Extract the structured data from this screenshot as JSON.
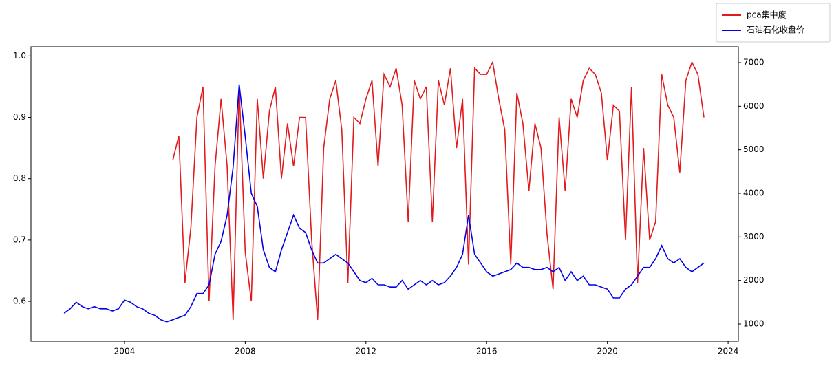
{
  "chart_data": {
    "type": "line",
    "x": [
      2002,
      2002.2,
      2002.4,
      2002.6,
      2002.8,
      2003,
      2003.2,
      2003.4,
      2003.6,
      2003.8,
      2004,
      2004.2,
      2004.4,
      2004.6,
      2004.8,
      2005,
      2005.2,
      2005.4,
      2005.6,
      2005.8,
      2006,
      2006.2,
      2006.4,
      2006.6,
      2006.8,
      2007,
      2007.2,
      2007.4,
      2007.6,
      2007.8,
      2008,
      2008.2,
      2008.4,
      2008.6,
      2008.8,
      2009,
      2009.2,
      2009.4,
      2009.6,
      2009.8,
      2010,
      2010.2,
      2010.4,
      2010.6,
      2010.8,
      2011,
      2011.2,
      2011.4,
      2011.6,
      2011.8,
      2012,
      2012.2,
      2012.4,
      2012.6,
      2012.8,
      2013,
      2013.2,
      2013.4,
      2013.6,
      2013.8,
      2014,
      2014.2,
      2014.4,
      2014.6,
      2014.8,
      2015,
      2015.2,
      2015.4,
      2015.6,
      2015.8,
      2016,
      2016.2,
      2016.4,
      2016.6,
      2016.8,
      2017,
      2017.2,
      2017.4,
      2017.6,
      2017.8,
      2018,
      2018.2,
      2018.4,
      2018.6,
      2018.8,
      2019,
      2019.2,
      2019.4,
      2019.6,
      2019.8,
      2020,
      2020.2,
      2020.4,
      2020.6,
      2020.8,
      2021,
      2021.2,
      2021.4,
      2021.6,
      2021.8,
      2022,
      2022.2,
      2022.4,
      2022.6,
      2022.8,
      2023,
      2023.2
    ],
    "series": [
      {
        "name": "pca集中度",
        "color": "#e31a1c",
        "axis": "y",
        "values": [
          null,
          null,
          null,
          null,
          null,
          null,
          null,
          null,
          null,
          null,
          null,
          null,
          null,
          null,
          null,
          null,
          null,
          null,
          0.83,
          0.87,
          0.63,
          0.72,
          0.9,
          0.95,
          0.6,
          0.82,
          0.93,
          0.82,
          0.57,
          0.95,
          0.68,
          0.6,
          0.93,
          0.8,
          0.91,
          0.95,
          0.8,
          0.89,
          0.82,
          0.9,
          0.9,
          0.7,
          0.57,
          0.85,
          0.93,
          0.96,
          0.88,
          0.63,
          0.9,
          0.89,
          0.93,
          0.96,
          0.82,
          0.97,
          0.95,
          0.98,
          0.92,
          0.73,
          0.96,
          0.93,
          0.95,
          0.73,
          0.96,
          0.92,
          0.98,
          0.85,
          0.93,
          0.66,
          0.98,
          0.97,
          0.97,
          0.99,
          0.93,
          0.88,
          0.66,
          0.94,
          0.89,
          0.78,
          0.89,
          0.85,
          0.71,
          0.62,
          0.9,
          0.78,
          0.93,
          0.9,
          0.96,
          0.98,
          0.97,
          0.94,
          0.83,
          0.92,
          0.91,
          0.7,
          0.95,
          0.63,
          0.85,
          0.7,
          0.73,
          0.97,
          0.92,
          0.9,
          0.81,
          0.96,
          0.99,
          0.97,
          0.9
        ]
      },
      {
        "name": "石油石化收盘价",
        "color": "#0000ee",
        "axis": "y2",
        "values": [
          1250,
          1350,
          1500,
          1400,
          1350,
          1400,
          1350,
          1350,
          1300,
          1350,
          1550,
          1500,
          1400,
          1350,
          1250,
          1200,
          1100,
          1050,
          1100,
          1150,
          1200,
          1400,
          1700,
          1700,
          1900,
          2600,
          2900,
          3500,
          4600,
          6500,
          5300,
          4000,
          3700,
          2700,
          2300,
          2200,
          2700,
          3100,
          3500,
          3200,
          3100,
          2700,
          2400,
          2400,
          2500,
          2600,
          2500,
          2400,
          2200,
          2000,
          1950,
          2050,
          1900,
          1900,
          1850,
          1850,
          2000,
          1800,
          1900,
          2000,
          1900,
          2000,
          1900,
          1950,
          2100,
          2300,
          2600,
          3500,
          2600,
          2400,
          2200,
          2100,
          2150,
          2200,
          2250,
          2400,
          2300,
          2300,
          2250,
          2250,
          2300,
          2200,
          2300,
          2000,
          2200,
          2000,
          2100,
          1900,
          1900,
          1850,
          1800,
          1600,
          1600,
          1800,
          1900,
          2100,
          2300,
          2300,
          2500,
          2800,
          2500,
          2400,
          2500,
          2300,
          2200,
          2300,
          2400
        ]
      }
    ],
    "xlim": [
      2000.9,
      2024.34
    ],
    "xticks": [
      2004,
      2008,
      2012,
      2016,
      2020,
      2024
    ],
    "ylim": [
      0.535,
      1.015
    ],
    "yticks": [
      0.6,
      0.7,
      0.8,
      0.9,
      {
        "value": 1.0,
        "label": "1.0"
      }
    ],
    "y2lim": [
      605,
      7363
    ],
    "y2ticks": [
      1000,
      2000,
      3000,
      4000,
      5000,
      6000,
      7000
    ],
    "legend": "upper right"
  }
}
